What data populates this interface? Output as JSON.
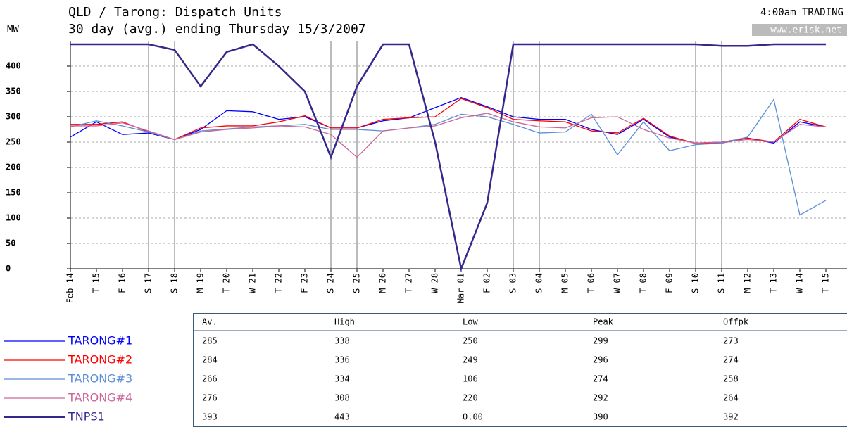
{
  "chart_data": {
    "type": "line",
    "title": "QLD / Tarong: Dispatch Units",
    "subtitle": "30 day (avg.) ending Thursday 15/3/2007",
    "y_label": "MW",
    "categories": [
      "Feb 14",
      "T 15",
      "F 16",
      "S 17",
      "S 18",
      "M 19",
      "T 20",
      "W 21",
      "T 22",
      "F 23",
      "S 24",
      "S 25",
      "M 26",
      "T 27",
      "W 28",
      "Mar 01",
      "F 02",
      "S 03",
      "S 04",
      "M 05",
      "T 06",
      "W 07",
      "T 08",
      "F 09",
      "S 10",
      "S 11",
      "M 12",
      "T 13",
      "W 14",
      "T 15"
    ],
    "series": [
      {
        "name": "TARONG#1",
        "color": "#0000ff",
        "values": [
          260,
          290,
          265,
          268,
          255,
          275,
          312,
          310,
          295,
          300,
          278,
          278,
          292,
          298,
          318,
          338,
          320,
          300,
          295,
          295,
          275,
          265,
          295,
          260,
          248,
          250,
          258,
          248,
          290,
          280
        ]
      },
      {
        "name": "TARONG#2",
        "color": "#ff0000",
        "values": [
          285,
          285,
          290,
          270,
          255,
          278,
          282,
          282,
          290,
          302,
          278,
          278,
          295,
          298,
          300,
          336,
          318,
          295,
          292,
          290,
          272,
          268,
          297,
          262,
          247,
          248,
          258,
          250,
          295,
          280
        ]
      },
      {
        "name": "TARONG#3",
        "color": "#5b8fd6",
        "values": [
          280,
          292,
          282,
          270,
          255,
          272,
          276,
          280,
          282,
          285,
          275,
          275,
          272,
          278,
          285,
          305,
          300,
          285,
          268,
          270,
          305,
          225,
          290,
          233,
          245,
          248,
          260,
          334,
          106,
          135
        ]
      },
      {
        "name": "TARONG#4",
        "color": "#cc6699",
        "values": [
          282,
          282,
          288,
          272,
          255,
          270,
          275,
          278,
          282,
          280,
          265,
          220,
          272,
          278,
          282,
          298,
          307,
          290,
          280,
          278,
          298,
          300,
          275,
          258,
          248,
          250,
          255,
          250,
          285,
          280
        ]
      },
      {
        "name": "TNPS1",
        "color": "#33288c",
        "values": [
          443,
          443,
          443,
          443,
          432,
          360,
          428,
          443,
          400,
          350,
          220,
          360,
          443,
          443,
          250,
          0,
          130,
          443,
          443,
          443,
          443,
          443,
          443,
          443,
          443,
          440,
          440,
          443,
          443,
          443
        ]
      }
    ],
    "ylim": [
      0,
      450
    ],
    "yticks": [
      0,
      50,
      100,
      150,
      200,
      250,
      300,
      350,
      400
    ],
    "grid": true
  },
  "header": {
    "trading": "4:00am TRADING",
    "site": "www.erisk.net"
  },
  "table": {
    "columns": [
      "Av.",
      "High",
      "Low",
      "Peak",
      "Offpk"
    ],
    "rows": [
      [
        285,
        338,
        250,
        299,
        273
      ],
      [
        284,
        336,
        249,
        296,
        274
      ],
      [
        266,
        334,
        106,
        274,
        258
      ],
      [
        276,
        308,
        220,
        292,
        264
      ],
      [
        393,
        443,
        "0.00",
        390,
        392
      ]
    ]
  }
}
